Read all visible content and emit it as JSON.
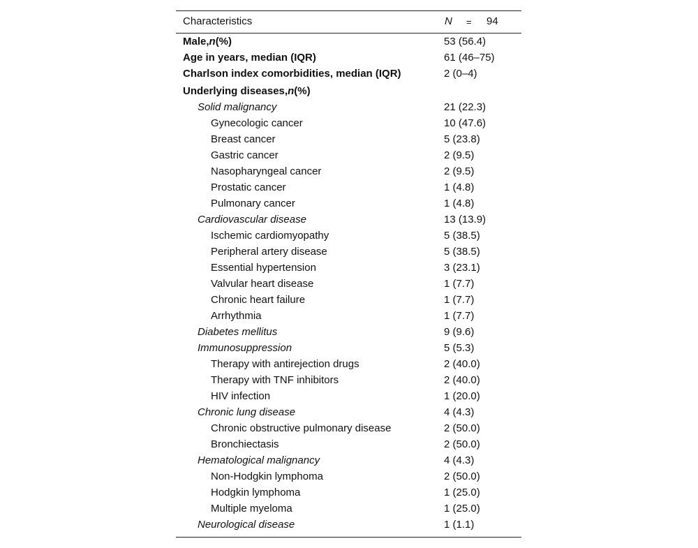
{
  "header": {
    "label": "Characteristics",
    "n_symbol": "N",
    "equals": "=",
    "n_value": "94"
  },
  "rows": [
    {
      "label": "Male,",
      "n": "n",
      "suffix": "(%)",
      "value": "53 (56.4)"
    },
    {
      "label": "Age in years, median (IQR)",
      "value": "61 (46–75)"
    },
    {
      "label": "Charlson index comorbidities, median (IQR)",
      "value": "2 (0–4)"
    },
    {
      "label": "Underlying diseases,",
      "n": "n",
      "suffix": "(%)"
    },
    {
      "label": "Solid malignancy",
      "value": "21 (22.3)"
    },
    {
      "label": "Gynecologic cancer",
      "value": "10 (47.6)"
    },
    {
      "label": "Breast cancer",
      "value": "5 (23.8)"
    },
    {
      "label": "Gastric cancer",
      "value": "2 (9.5)"
    },
    {
      "label": "Nasopharyngeal cancer",
      "value": "2 (9.5)"
    },
    {
      "label": "Prostatic cancer",
      "value": "1 (4.8)"
    },
    {
      "label": "Pulmonary cancer",
      "value": "1 (4.8)"
    },
    {
      "label": "Cardiovascular disease",
      "value": "13 (13.9)"
    },
    {
      "label": "Ischemic cardiomyopathy",
      "value": "5 (38.5)"
    },
    {
      "label": "Peripheral artery disease",
      "value": "5 (38.5)"
    },
    {
      "label": "Essential hypertension",
      "value": "3 (23.1)"
    },
    {
      "label": "Valvular heart disease",
      "value": "1 (7.7)"
    },
    {
      "label": "Chronic heart failure",
      "value": "1 (7.7)"
    },
    {
      "label": "Arrhythmia",
      "value": "1 (7.7)"
    },
    {
      "label": "Diabetes mellitus",
      "value": "9 (9.6)"
    },
    {
      "label": "Immunosuppression",
      "value": "5 (5.3)"
    },
    {
      "label": "Therapy with antirejection drugs",
      "value": "2 (40.0)"
    },
    {
      "label": "Therapy with TNF inhibitors",
      "value": "2 (40.0)"
    },
    {
      "label": "HIV infection",
      "value": "1 (20.0)"
    },
    {
      "label": "Chronic lung disease",
      "value": "4 (4.3)"
    },
    {
      "label": "Chronic obstructive pulmonary disease",
      "value": "2 (50.0)"
    },
    {
      "label": "Bronchiectasis",
      "value": "2 (50.0)"
    },
    {
      "label": "Hematological malignancy",
      "value": "4 (4.3)"
    },
    {
      "label": "Non-Hodgkin lymphoma",
      "value": "2 (50.0)"
    },
    {
      "label": "Hodgkin lymphoma",
      "value": "1 (25.0)"
    },
    {
      "label": "Multiple myeloma",
      "value": "1 (25.0)"
    },
    {
      "label": "Neurological disease",
      "value": "1 (1.1)"
    }
  ]
}
